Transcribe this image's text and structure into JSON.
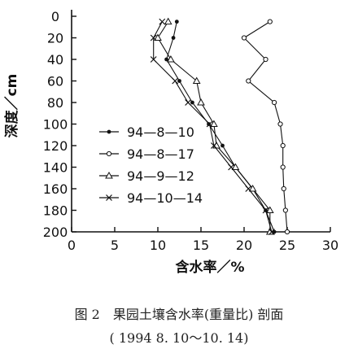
{
  "chart_data": {
    "type": "line",
    "title": "",
    "xlabel": "含水率／%",
    "ylabel": "深度／cm",
    "xlim": [
      0,
      30
    ],
    "ylim": [
      200,
      0
    ],
    "y_inverted": true,
    "xticks": [
      "0",
      "5",
      "10",
      "15",
      "20",
      "25",
      "30"
    ],
    "yticks": [
      "0",
      "20",
      "40",
      "60",
      "80",
      "100",
      "120",
      "140",
      "160",
      "180",
      "200"
    ],
    "legend_position": "lower-left",
    "grid": false,
    "depths": [
      5,
      20,
      40,
      60,
      80,
      100,
      120,
      140,
      160,
      180,
      200
    ],
    "series": [
      {
        "name": "94—8—10",
        "marker": "dot",
        "x": [
          12.2,
          11.8,
          11.0,
          12.5,
          14.0,
          15.9,
          17.5,
          19.0,
          21.0,
          22.5,
          23.5
        ],
        "y": [
          5,
          20,
          40,
          60,
          80,
          100,
          120,
          140,
          160,
          180,
          200
        ]
      },
      {
        "name": "94—8—17",
        "marker": "circle",
        "x": [
          23.0,
          20.0,
          22.5,
          20.5,
          23.5,
          24.2,
          24.5,
          24.5,
          24.6,
          24.8,
          25.0
        ],
        "y": [
          5,
          20,
          40,
          60,
          80,
          100,
          120,
          140,
          160,
          180,
          200
        ]
      },
      {
        "name": "94—9—12",
        "marker": "triangle",
        "x": [
          11.2,
          10.0,
          11.5,
          14.5,
          15.0,
          16.5,
          16.8,
          19.0,
          21.0,
          23.0,
          23.0
        ],
        "y": [
          5,
          20,
          40,
          60,
          80,
          100,
          120,
          140,
          160,
          180,
          200
        ]
      },
      {
        "name": "94—10—14",
        "marker": "cross",
        "x": [
          10.5,
          9.5,
          9.5,
          12.0,
          13.5,
          16.0,
          16.5,
          18.5,
          20.5,
          22.5,
          23.2
        ],
        "y": [
          5,
          20,
          40,
          60,
          80,
          100,
          120,
          140,
          160,
          180,
          200
        ]
      }
    ]
  },
  "caption": {
    "title": "图 2　果园土壤含水率(重量比) 剖面",
    "subtitle": "( 1994 8. 10～10. 14)"
  }
}
